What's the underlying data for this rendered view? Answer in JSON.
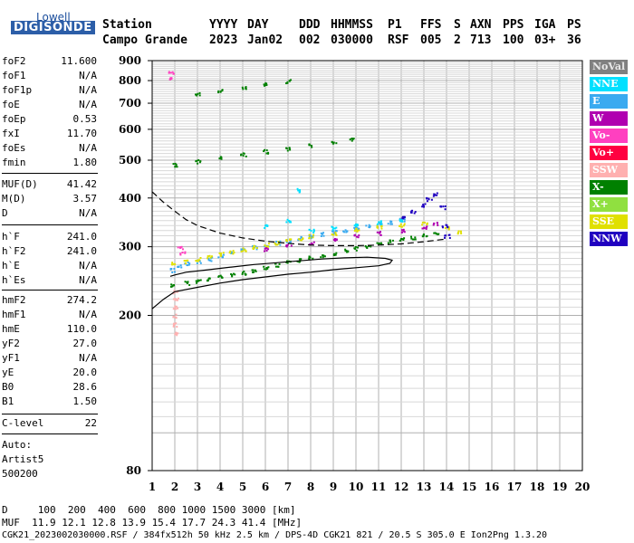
{
  "logo": {
    "top": "Lowell",
    "main": "DIGISONDE"
  },
  "header": {
    "row1": {
      "station": "Station",
      "yyyy": "YYYY",
      "day": "DAY",
      "ddd": "DDD",
      "hhmmss": "HHMMSS",
      "p1": "P1",
      "ffs": "FFS",
      "s": "S",
      "axn": "AXN",
      "pps": "PPS",
      "iga": "IGA",
      "ps": "PS"
    },
    "row2": {
      "station": "Campo Grande",
      "yyyy": "2023",
      "day": "Jan02",
      "ddd": "002",
      "hhmmss": "030000",
      "p1": "RSF",
      "ffs": "005",
      "s": "2",
      "axn": "713",
      "pps": "100",
      "iga": "03+",
      "ps": "36"
    }
  },
  "params": [
    {
      "name": "foF2",
      "value": "11.600"
    },
    {
      "name": "foF1",
      "value": "N/A"
    },
    {
      "name": "foF1p",
      "value": "N/A"
    },
    {
      "name": "foE",
      "value": "N/A"
    },
    {
      "name": "foEp",
      "value": "0.53"
    },
    {
      "name": "fxI",
      "value": "11.70"
    },
    {
      "name": "foEs",
      "value": "N/A"
    },
    {
      "name": "fmin",
      "value": "1.80"
    },
    {
      "name": "MUF(D)",
      "value": "41.42"
    },
    {
      "name": "M(D)",
      "value": "3.57"
    },
    {
      "name": "D",
      "value": "N/A"
    },
    {
      "name": "h`F",
      "value": "241.0"
    },
    {
      "name": "h`F2",
      "value": "241.0"
    },
    {
      "name": "h`E",
      "value": "N/A"
    },
    {
      "name": "h`Es",
      "value": "N/A"
    },
    {
      "name": "hmF2",
      "value": "274.2"
    },
    {
      "name": "hmF1",
      "value": "N/A"
    },
    {
      "name": "hmE",
      "value": "110.0"
    },
    {
      "name": "yF2",
      "value": "27.0"
    },
    {
      "name": "yF1",
      "value": "N/A"
    },
    {
      "name": "yE",
      "value": "20.0"
    },
    {
      "name": "B0",
      "value": "28.6"
    },
    {
      "name": "B1",
      "value": "1.50"
    },
    {
      "name": "C-level",
      "value": "22"
    }
  ],
  "auto": {
    "line1": "Auto:",
    "line2": "Artist5",
    "line3": "500200"
  },
  "legend": [
    {
      "label": "NoVal",
      "color": "#808080"
    },
    {
      "label": "NNE",
      "color": "#00e0ff"
    },
    {
      "label": "E",
      "color": "#3aaaf0"
    },
    {
      "label": "W",
      "color": "#b000b0"
    },
    {
      "label": "Vo-",
      "color": "#ff40c0"
    },
    {
      "label": "Vo+",
      "color": "#ff0040"
    },
    {
      "label": "SSW",
      "color": "#ffb0b0"
    },
    {
      "label": "X-",
      "color": "#008000"
    },
    {
      "label": "X+",
      "color": "#90e040"
    },
    {
      "label": "SSE",
      "color": "#e0e000"
    },
    {
      "label": "NNW",
      "color": "#2000c0"
    }
  ],
  "footer": {
    "line1": "D     100  200  400  600  800 1000 1500 3000 [km]",
    "line2": "MUF  11.9 12.1 12.8 13.9 15.4 17.7 24.3 41.4 [MHz]",
    "line3": "CGK21_2023002030000.RSF / 384fx512h 50 kHz 2.5 km / DPS-4D CGK21 821 / 20.5 S 305.0 E Ion2Png 1.3.20"
  },
  "chart_data": {
    "type": "scatter",
    "xlim": [
      1,
      20
    ],
    "ylim": [
      80,
      900
    ],
    "y_scale": "log",
    "xticks": [
      1,
      2,
      3,
      4,
      5,
      6,
      7,
      8,
      9,
      10,
      11,
      12,
      13,
      14,
      15,
      16,
      17,
      18,
      19,
      20
    ],
    "yticks": [
      80,
      200,
      300,
      400,
      500,
      600,
      700,
      800,
      900
    ],
    "grid": true,
    "legend_position": "right",
    "series": [
      {
        "name": "X-",
        "points": [
          [
            1.9,
            240
          ],
          [
            2.5,
            243
          ],
          [
            3,
            246
          ],
          [
            3.5,
            249
          ],
          [
            4,
            252
          ],
          [
            4.5,
            255
          ],
          [
            5,
            258
          ],
          [
            5.5,
            262
          ],
          [
            6,
            266
          ],
          [
            6.5,
            270
          ],
          [
            7,
            274
          ],
          [
            7.5,
            278
          ],
          [
            8,
            282
          ],
          [
            8.5,
            286
          ],
          [
            9,
            290
          ],
          [
            9.5,
            294
          ],
          [
            10,
            298
          ],
          [
            10.5,
            302
          ],
          [
            11,
            306
          ],
          [
            11.5,
            310
          ],
          [
            12,
            314
          ],
          [
            12.5,
            318
          ],
          [
            13,
            322
          ],
          [
            13.5,
            326
          ],
          [
            2,
            488
          ],
          [
            3,
            498
          ],
          [
            4,
            508
          ],
          [
            5,
            518
          ],
          [
            6,
            528
          ],
          [
            7,
            537
          ],
          [
            8,
            548
          ],
          [
            9,
            558
          ],
          [
            9.8,
            568
          ],
          [
            3,
            740
          ],
          [
            4,
            755
          ],
          [
            5,
            770
          ],
          [
            6,
            785
          ],
          [
            7,
            800
          ]
        ]
      },
      {
        "name": "E",
        "points": [
          [
            1.9,
            262
          ],
          [
            2.2,
            268
          ],
          [
            2.5,
            272
          ],
          [
            3,
            276
          ],
          [
            3.5,
            280
          ],
          [
            4,
            285
          ],
          [
            4.5,
            290
          ],
          [
            5,
            295
          ],
          [
            5.5,
            300
          ],
          [
            6,
            304
          ],
          [
            6.5,
            308
          ],
          [
            7,
            312
          ],
          [
            7.5,
            316
          ],
          [
            8,
            320
          ],
          [
            8.5,
            324
          ],
          [
            9,
            328
          ],
          [
            9.5,
            332
          ],
          [
            10,
            336
          ],
          [
            10.5,
            340
          ],
          [
            11,
            344
          ],
          [
            11.5,
            348
          ],
          [
            12,
            352
          ]
        ]
      },
      {
        "name": "SSE",
        "points": [
          [
            1.9,
            272
          ],
          [
            2.5,
            276
          ],
          [
            3,
            280
          ],
          [
            3.5,
            284
          ],
          [
            4,
            288
          ],
          [
            4.5,
            292
          ],
          [
            5,
            296
          ],
          [
            5.5,
            300
          ],
          [
            6,
            304
          ],
          [
            6.5,
            308
          ],
          [
            7,
            312
          ],
          [
            7.5,
            316
          ],
          [
            8,
            320
          ],
          [
            9,
            326
          ],
          [
            10,
            332
          ],
          [
            11,
            338
          ],
          [
            12,
            342
          ],
          [
            13,
            346
          ],
          [
            14,
            336
          ],
          [
            14.5,
            328
          ]
        ]
      },
      {
        "name": "W",
        "points": [
          [
            6,
            296
          ],
          [
            7,
            302
          ],
          [
            8,
            308
          ],
          [
            9,
            314
          ],
          [
            10,
            320
          ],
          [
            11,
            326
          ],
          [
            12,
            330
          ],
          [
            13,
            338
          ],
          [
            13.5,
            344
          ]
        ]
      },
      {
        "name": "NNW",
        "points": [
          [
            12,
            360
          ],
          [
            12.5,
            370
          ],
          [
            13,
            385
          ],
          [
            13.2,
            398
          ],
          [
            13.5,
            410
          ],
          [
            13.8,
            380
          ],
          [
            13.9,
            340
          ],
          [
            14,
            320
          ]
        ]
      },
      {
        "name": "NNE",
        "points": [
          [
            6,
            340
          ],
          [
            7,
            350
          ],
          [
            7.5,
            420
          ],
          [
            8,
            330
          ],
          [
            9,
            336
          ],
          [
            10,
            342
          ],
          [
            11,
            348
          ],
          [
            12,
            352
          ]
        ]
      },
      {
        "name": "Vo-",
        "points": [
          [
            1.8,
            840
          ],
          [
            1.8,
            810
          ],
          [
            2.2,
            300
          ],
          [
            2.3,
            290
          ]
        ]
      },
      {
        "name": "SSW",
        "points": [
          [
            2,
            180
          ],
          [
            2,
            190
          ],
          [
            2,
            200
          ],
          [
            2,
            210
          ],
          [
            2,
            220
          ],
          [
            2,
            230
          ]
        ]
      }
    ],
    "lines": [
      {
        "style": "solid",
        "points": [
          [
            1,
            208
          ],
          [
            1.5,
            220
          ],
          [
            2,
            230
          ],
          [
            3,
            236
          ],
          [
            4,
            242
          ],
          [
            5,
            247
          ],
          [
            6,
            251
          ],
          [
            7,
            255
          ],
          [
            8,
            258
          ],
          [
            9,
            262
          ],
          [
            10,
            265
          ],
          [
            11,
            268
          ],
          [
            11.5,
            272
          ],
          [
            11.6,
            277
          ],
          [
            11.3,
            280
          ],
          [
            10.5,
            282
          ],
          [
            9.5,
            281
          ],
          [
            8.5,
            279
          ],
          [
            7.5,
            276
          ],
          [
            6.5,
            273
          ],
          [
            5.5,
            270
          ],
          [
            4.5,
            266
          ],
          [
            3.5,
            262
          ],
          [
            2.5,
            258
          ],
          [
            2,
            254
          ],
          [
            1.8,
            252
          ]
        ]
      },
      {
        "style": "dashed",
        "points": [
          [
            1,
            415
          ],
          [
            1.5,
            390
          ],
          [
            2,
            370
          ],
          [
            2.5,
            352
          ],
          [
            3,
            340
          ],
          [
            4,
            325
          ],
          [
            5,
            316
          ],
          [
            6,
            310
          ],
          [
            7,
            306
          ],
          [
            8,
            303
          ],
          [
            9,
            302
          ],
          [
            10,
            302
          ],
          [
            11,
            303
          ],
          [
            12,
            305
          ],
          [
            13,
            309
          ],
          [
            14,
            314
          ]
        ]
      }
    ]
  }
}
